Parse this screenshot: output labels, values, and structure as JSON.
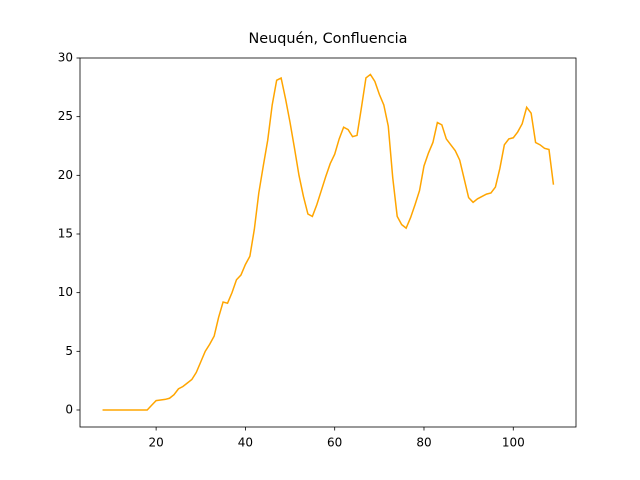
{
  "chart_data": {
    "type": "line",
    "title": "Neuquén, Confluencia",
    "x": [
      8,
      9,
      10,
      11,
      12,
      13,
      14,
      15,
      16,
      17,
      18,
      19,
      20,
      21,
      22,
      23,
      24,
      25,
      26,
      27,
      28,
      29,
      30,
      31,
      32,
      33,
      34,
      35,
      36,
      37,
      38,
      39,
      40,
      41,
      42,
      43,
      44,
      45,
      46,
      47,
      48,
      49,
      50,
      51,
      52,
      53,
      54,
      55,
      56,
      57,
      58,
      59,
      60,
      61,
      62,
      63,
      64,
      65,
      66,
      67,
      68,
      69,
      70,
      71,
      72,
      73,
      74,
      75,
      76,
      77,
      78,
      79,
      80,
      81,
      82,
      83,
      84,
      85,
      86,
      87,
      88,
      89,
      90,
      91,
      92,
      93,
      94,
      95,
      96,
      97,
      98,
      99,
      100,
      101,
      102,
      103,
      104,
      105,
      106,
      107,
      108,
      109
    ],
    "series": [
      {
        "color": "orange",
        "values": [
          0,
          0,
          0,
          0,
          0,
          0,
          0,
          0,
          0,
          0,
          0,
          0.4,
          0.8,
          0.85,
          0.9,
          1.0,
          1.3,
          1.8,
          2.0,
          2.3,
          2.6,
          3.2,
          4.1,
          5.0,
          5.6,
          6.3,
          7.9,
          9.2,
          9.1,
          10.0,
          11.1,
          11.5,
          12.4,
          13.1,
          15.4,
          18.5,
          20.8,
          23.0,
          26.0,
          28.1,
          28.3,
          26.5,
          24.5,
          22.3,
          20.0,
          18.2,
          16.7,
          16.5,
          17.5,
          18.7,
          19.9,
          21.0,
          21.8,
          23.1,
          24.1,
          23.9,
          23.3,
          23.4,
          25.8,
          28.3,
          28.6,
          28.0,
          26.9,
          26.0,
          24.2,
          19.8,
          16.5,
          15.8,
          15.5,
          16.4,
          17.5,
          18.7,
          20.8,
          21.9,
          22.8,
          24.5,
          24.3,
          23.1,
          22.6,
          22.1,
          21.3,
          19.7,
          18.1,
          17.7,
          18.0,
          18.2,
          18.4,
          18.5,
          19.0,
          20.6,
          22.6,
          23.1,
          23.2,
          23.7,
          24.4,
          25.8,
          25.3,
          22.8,
          22.6,
          22.3,
          22.2,
          19.2
        ]
      }
    ],
    "xlim": [
      2.95,
      114.05
    ],
    "ylim": [
      -1.45,
      30.0
    ],
    "xticks": [
      20,
      40,
      60,
      80,
      100
    ],
    "yticks": [
      0,
      5,
      10,
      15,
      20,
      25,
      30
    ]
  }
}
